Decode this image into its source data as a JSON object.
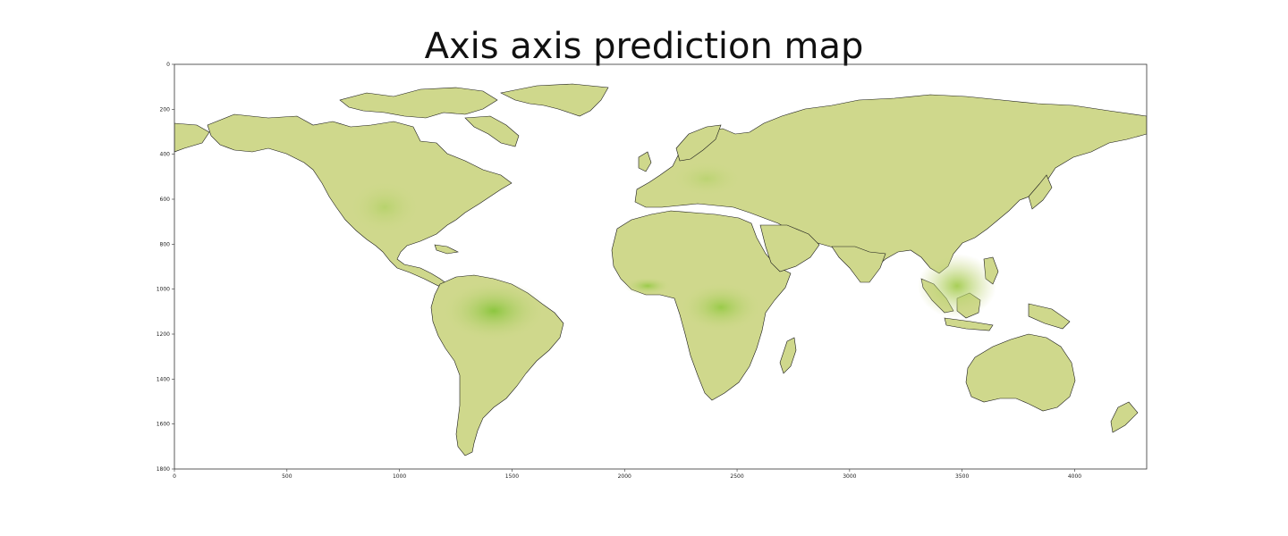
{
  "figure": {
    "title": "Axis axis prediction map"
  },
  "axes": {
    "x_ticks": [
      "0",
      "500",
      "1000",
      "1500",
      "2000",
      "2500",
      "3000",
      "3500",
      "4000"
    ],
    "y_ticks": [
      "0",
      "200",
      "400",
      "600",
      "800",
      "1000",
      "1200",
      "1400",
      "1600",
      "1800"
    ],
    "xlim": [
      0,
      4320
    ],
    "ylim": [
      0,
      1800
    ],
    "y_inverted": true
  },
  "map": {
    "colormap": "light khaki to green",
    "land_base_color": "#cfd88c",
    "land_high_color": "#8cc63f",
    "ocean_color": "#ffffff",
    "coastline_color": "#000000"
  }
}
